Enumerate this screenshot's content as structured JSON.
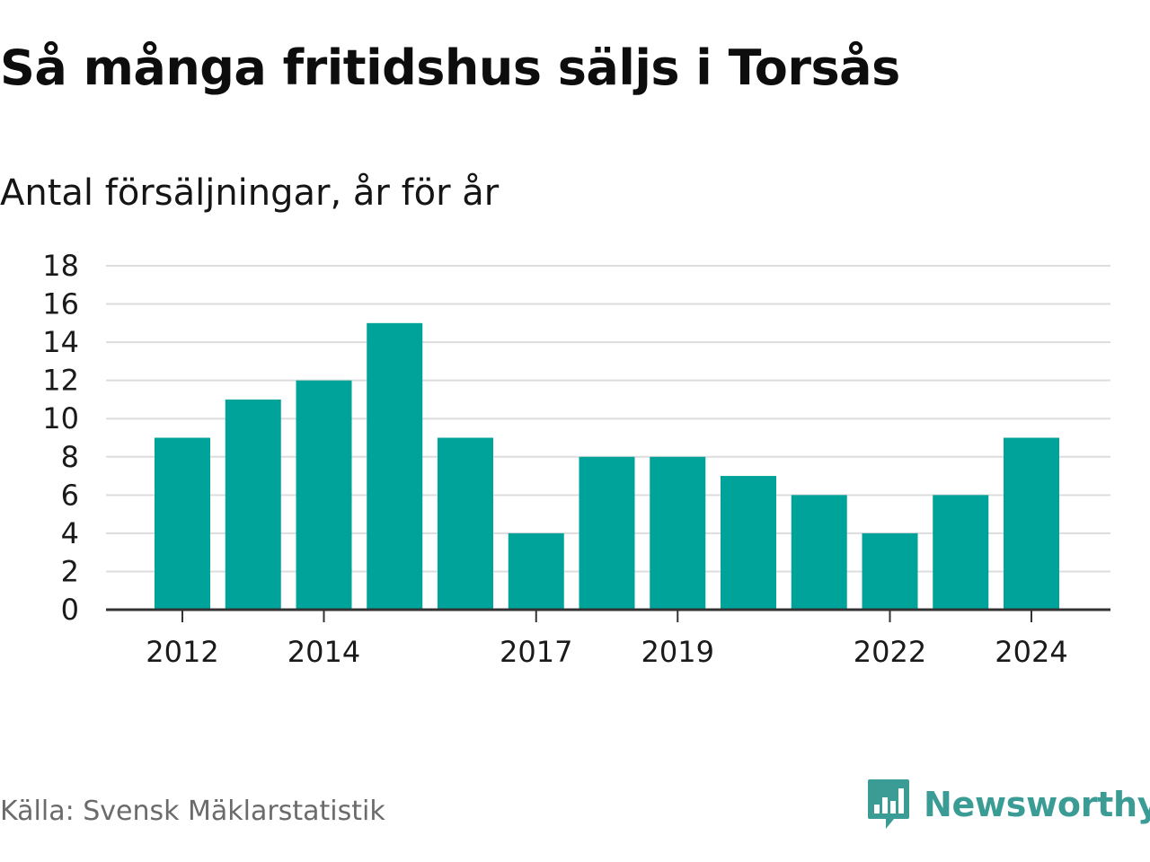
{
  "header": {
    "title": "Så många fritidshus säljs i Torsås",
    "subtitle": "Antal försäljningar, år för år"
  },
  "footer": {
    "source": "Källa: Svensk Mäklarstatistik",
    "brand": "Newsworthy"
  },
  "colors": {
    "bar": "#00a39a",
    "grid": "#dddddd",
    "axis": "#333333",
    "brand": "#3a9c94"
  },
  "icons": {
    "brand_logo": "bar-chart-speech-bubble-icon"
  },
  "chart_data": {
    "type": "bar",
    "title": "Så många fritidshus säljs i Torsås",
    "subtitle": "Antal försäljningar, år för år",
    "xlabel": "",
    "ylabel": "",
    "categories": [
      "2012",
      "2013",
      "2014",
      "2015",
      "2016",
      "2017",
      "2018",
      "2019",
      "2020",
      "2021",
      "2022",
      "2023",
      "2024"
    ],
    "values": [
      9,
      11,
      12,
      15,
      9,
      4,
      8,
      8,
      7,
      6,
      4,
      6,
      9
    ],
    "x_tick_labels": [
      "2012",
      "2014",
      "2017",
      "2019",
      "2022",
      "2024"
    ],
    "y_ticks": [
      0,
      2,
      4,
      6,
      8,
      10,
      12,
      14,
      16,
      18
    ],
    "ylim": [
      0,
      18
    ],
    "grid": true,
    "legend": "none"
  }
}
